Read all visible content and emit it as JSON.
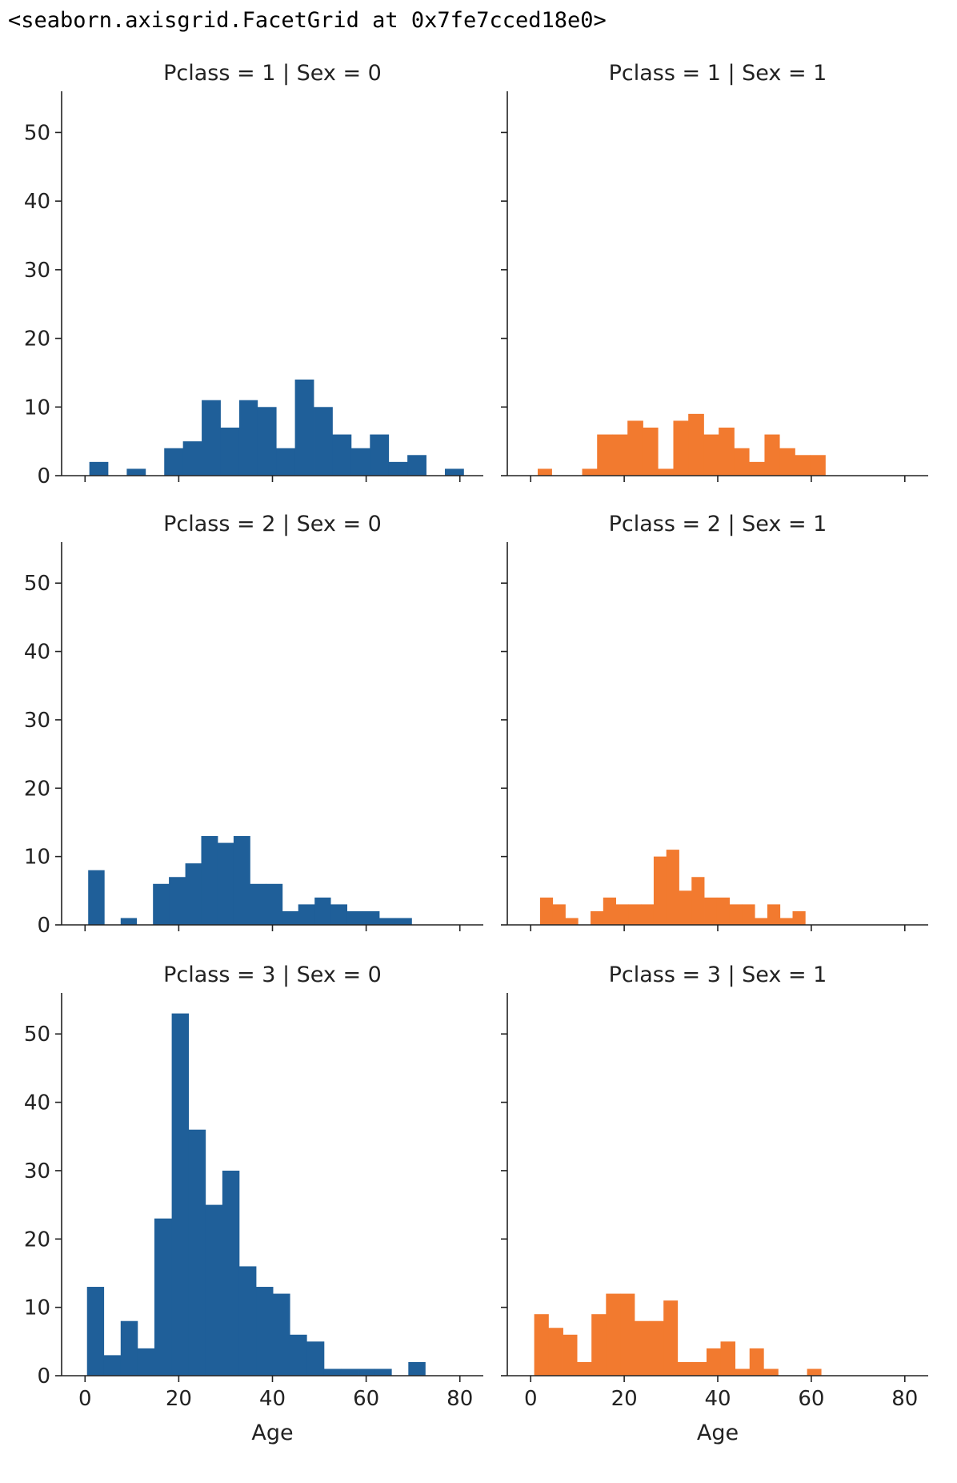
{
  "output_repr": "<seaborn.axisgrid.FacetGrid at 0x7fe7cced18e0>",
  "chart_data": {
    "type": "bar",
    "kind": "facet-histogram",
    "xlabel": "Age",
    "ylabel": "",
    "xlim": [
      -5,
      85
    ],
    "ylim": [
      0,
      56
    ],
    "xticks": [
      0,
      20,
      40,
      60,
      80
    ],
    "yticks": [
      0,
      10,
      20,
      30,
      40,
      50
    ],
    "grid": false,
    "colors": {
      "Sex = 0": "#1f5f99",
      "Sex = 1": "#f27a2f"
    },
    "facets": [
      {
        "title": "Pclass = 1 | Sex = 0",
        "color": "#1f5f99",
        "bins": [
          {
            "x0": 0.92,
            "x1": 4.9,
            "count": 2
          },
          {
            "x0": 4.9,
            "x1": 8.9,
            "count": 0
          },
          {
            "x0": 8.9,
            "x1": 12.9,
            "count": 1
          },
          {
            "x0": 12.9,
            "x1": 16.9,
            "count": 0
          },
          {
            "x0": 16.9,
            "x1": 20.9,
            "count": 4
          },
          {
            "x0": 20.9,
            "x1": 24.9,
            "count": 5
          },
          {
            "x0": 24.9,
            "x1": 28.9,
            "count": 11
          },
          {
            "x0": 28.9,
            "x1": 32.9,
            "count": 7
          },
          {
            "x0": 32.9,
            "x1": 36.8,
            "count": 11
          },
          {
            "x0": 36.8,
            "x1": 40.8,
            "count": 10
          },
          {
            "x0": 40.8,
            "x1": 44.8,
            "count": 4
          },
          {
            "x0": 44.8,
            "x1": 48.8,
            "count": 14
          },
          {
            "x0": 48.8,
            "x1": 52.8,
            "count": 10
          },
          {
            "x0": 52.8,
            "x1": 56.8,
            "count": 6
          },
          {
            "x0": 56.8,
            "x1": 60.8,
            "count": 4
          },
          {
            "x0": 60.8,
            "x1": 64.8,
            "count": 6
          },
          {
            "x0": 64.8,
            "x1": 68.8,
            "count": 2
          },
          {
            "x0": 68.8,
            "x1": 72.8,
            "count": 3
          },
          {
            "x0": 72.8,
            "x1": 76.8,
            "count": 0
          },
          {
            "x0": 76.8,
            "x1": 80.8,
            "count": 1
          }
        ]
      },
      {
        "title": "Pclass = 1 | Sex = 1",
        "color": "#f27a2f",
        "bins": [
          {
            "x0": 1.5,
            "x1": 4.5,
            "count": 1
          },
          {
            "x0": 4.5,
            "x1": 11.0,
            "count": 0
          },
          {
            "x0": 11.0,
            "x1": 14.2,
            "count": 1
          },
          {
            "x0": 14.2,
            "x1": 17.5,
            "count": 6
          },
          {
            "x0": 17.5,
            "x1": 20.7,
            "count": 6
          },
          {
            "x0": 20.7,
            "x1": 24.0,
            "count": 8
          },
          {
            "x0": 24.0,
            "x1": 27.2,
            "count": 7
          },
          {
            "x0": 27.2,
            "x1": 30.5,
            "count": 1
          },
          {
            "x0": 30.5,
            "x1": 33.7,
            "count": 8
          },
          {
            "x0": 33.7,
            "x1": 37.0,
            "count": 9
          },
          {
            "x0": 37.0,
            "x1": 40.2,
            "count": 6
          },
          {
            "x0": 40.2,
            "x1": 43.5,
            "count": 7
          },
          {
            "x0": 43.5,
            "x1": 46.7,
            "count": 4
          },
          {
            "x0": 46.7,
            "x1": 50.0,
            "count": 2
          },
          {
            "x0": 50.0,
            "x1": 53.2,
            "count": 6
          },
          {
            "x0": 53.2,
            "x1": 56.5,
            "count": 4
          },
          {
            "x0": 56.5,
            "x1": 59.7,
            "count": 3
          },
          {
            "x0": 59.7,
            "x1": 63.0,
            "count": 3
          }
        ]
      },
      {
        "title": "Pclass = 2 | Sex = 0",
        "color": "#1f5f99",
        "bins": [
          {
            "x0": 0.67,
            "x1": 4.1,
            "count": 8
          },
          {
            "x0": 4.1,
            "x1": 7.6,
            "count": 0
          },
          {
            "x0": 7.6,
            "x1": 11.0,
            "count": 1
          },
          {
            "x0": 11.0,
            "x1": 14.5,
            "count": 0
          },
          {
            "x0": 14.5,
            "x1": 17.9,
            "count": 6
          },
          {
            "x0": 17.9,
            "x1": 21.4,
            "count": 7
          },
          {
            "x0": 21.4,
            "x1": 24.8,
            "count": 9
          },
          {
            "x0": 24.8,
            "x1": 28.3,
            "count": 13
          },
          {
            "x0": 28.3,
            "x1": 31.7,
            "count": 12
          },
          {
            "x0": 31.7,
            "x1": 35.2,
            "count": 13
          },
          {
            "x0": 35.2,
            "x1": 38.6,
            "count": 6
          },
          {
            "x0": 38.6,
            "x1": 42.1,
            "count": 6
          },
          {
            "x0": 42.1,
            "x1": 45.5,
            "count": 2
          },
          {
            "x0": 45.5,
            "x1": 49.0,
            "count": 3
          },
          {
            "x0": 49.0,
            "x1": 52.4,
            "count": 4
          },
          {
            "x0": 52.4,
            "x1": 55.9,
            "count": 3
          },
          {
            "x0": 55.9,
            "x1": 59.3,
            "count": 2
          },
          {
            "x0": 59.3,
            "x1": 62.8,
            "count": 2
          },
          {
            "x0": 62.8,
            "x1": 66.2,
            "count": 1
          },
          {
            "x0": 66.2,
            "x1": 69.7,
            "count": 1
          }
        ]
      },
      {
        "title": "Pclass = 2 | Sex = 1",
        "color": "#f27a2f",
        "bins": [
          {
            "x0": 2.0,
            "x1": 4.7,
            "count": 4
          },
          {
            "x0": 4.7,
            "x1": 7.4,
            "count": 3
          },
          {
            "x0": 7.4,
            "x1": 10.1,
            "count": 1
          },
          {
            "x0": 10.1,
            "x1": 12.8,
            "count": 0
          },
          {
            "x0": 12.8,
            "x1": 15.5,
            "count": 2
          },
          {
            "x0": 15.5,
            "x1": 18.2,
            "count": 4
          },
          {
            "x0": 18.2,
            "x1": 20.9,
            "count": 3
          },
          {
            "x0": 20.9,
            "x1": 23.6,
            "count": 3
          },
          {
            "x0": 23.6,
            "x1": 26.3,
            "count": 3
          },
          {
            "x0": 26.3,
            "x1": 29.0,
            "count": 10
          },
          {
            "x0": 29.0,
            "x1": 31.7,
            "count": 11
          },
          {
            "x0": 31.7,
            "x1": 34.4,
            "count": 5
          },
          {
            "x0": 34.4,
            "x1": 37.1,
            "count": 7
          },
          {
            "x0": 37.1,
            "x1": 39.8,
            "count": 4
          },
          {
            "x0": 39.8,
            "x1": 42.5,
            "count": 4
          },
          {
            "x0": 42.5,
            "x1": 45.2,
            "count": 3
          },
          {
            "x0": 45.2,
            "x1": 47.9,
            "count": 3
          },
          {
            "x0": 47.9,
            "x1": 50.6,
            "count": 1
          },
          {
            "x0": 50.6,
            "x1": 53.3,
            "count": 3
          },
          {
            "x0": 53.3,
            "x1": 56.0,
            "count": 1
          },
          {
            "x0": 56.0,
            "x1": 58.7,
            "count": 2
          }
        ]
      },
      {
        "title": "Pclass = 3 | Sex = 0",
        "color": "#1f5f99",
        "bins": [
          {
            "x0": 0.42,
            "x1": 4.0,
            "count": 13
          },
          {
            "x0": 4.0,
            "x1": 7.6,
            "count": 3
          },
          {
            "x0": 7.6,
            "x1": 11.2,
            "count": 8
          },
          {
            "x0": 11.2,
            "x1": 14.8,
            "count": 4
          },
          {
            "x0": 14.8,
            "x1": 18.5,
            "count": 23
          },
          {
            "x0": 18.5,
            "x1": 22.1,
            "count": 53
          },
          {
            "x0": 22.1,
            "x1": 25.7,
            "count": 36
          },
          {
            "x0": 25.7,
            "x1": 29.3,
            "count": 25
          },
          {
            "x0": 29.3,
            "x1": 32.9,
            "count": 30
          },
          {
            "x0": 32.9,
            "x1": 36.5,
            "count": 16
          },
          {
            "x0": 36.5,
            "x1": 40.1,
            "count": 13
          },
          {
            "x0": 40.1,
            "x1": 43.7,
            "count": 12
          },
          {
            "x0": 43.7,
            "x1": 47.3,
            "count": 6
          },
          {
            "x0": 47.3,
            "x1": 51.0,
            "count": 5
          },
          {
            "x0": 51.0,
            "x1": 54.6,
            "count": 1
          },
          {
            "x0": 54.6,
            "x1": 58.2,
            "count": 1
          },
          {
            "x0": 58.2,
            "x1": 61.8,
            "count": 1
          },
          {
            "x0": 61.8,
            "x1": 65.4,
            "count": 1
          },
          {
            "x0": 65.4,
            "x1": 69.0,
            "count": 0
          },
          {
            "x0": 69.0,
            "x1": 72.6,
            "count": 2
          }
        ]
      },
      {
        "title": "Pclass = 3 | Sex = 1",
        "color": "#f27a2f",
        "bins": [
          {
            "x0": 0.75,
            "x1": 3.8,
            "count": 9
          },
          {
            "x0": 3.8,
            "x1": 6.9,
            "count": 7
          },
          {
            "x0": 6.9,
            "x1": 9.9,
            "count": 6
          },
          {
            "x0": 9.9,
            "x1": 13.0,
            "count": 2
          },
          {
            "x0": 13.0,
            "x1": 16.1,
            "count": 9
          },
          {
            "x0": 16.1,
            "x1": 19.2,
            "count": 12
          },
          {
            "x0": 19.2,
            "x1": 22.2,
            "count": 12
          },
          {
            "x0": 22.2,
            "x1": 25.3,
            "count": 8
          },
          {
            "x0": 25.3,
            "x1": 28.4,
            "count": 8
          },
          {
            "x0": 28.4,
            "x1": 31.4,
            "count": 11
          },
          {
            "x0": 31.4,
            "x1": 34.5,
            "count": 2
          },
          {
            "x0": 34.5,
            "x1": 37.6,
            "count": 2
          },
          {
            "x0": 37.6,
            "x1": 40.6,
            "count": 4
          },
          {
            "x0": 40.6,
            "x1": 43.7,
            "count": 5
          },
          {
            "x0": 43.7,
            "x1": 46.8,
            "count": 1
          },
          {
            "x0": 46.8,
            "x1": 49.8,
            "count": 4
          },
          {
            "x0": 49.8,
            "x1": 52.9,
            "count": 1
          },
          {
            "x0": 52.9,
            "x1": 56.0,
            "count": 0
          },
          {
            "x0": 56.0,
            "x1": 59.1,
            "count": 0
          },
          {
            "x0": 59.1,
            "x1": 62.1,
            "count": 1
          },
          {
            "x0": 62.1,
            "x1": 63.0,
            "count": 0
          }
        ]
      }
    ]
  }
}
